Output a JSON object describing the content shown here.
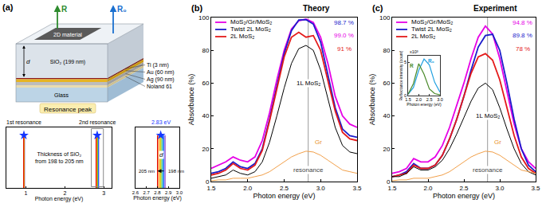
{
  "diagram": {
    "panel_label": "(a)",
    "material": "2D material",
    "R": "R",
    "R0": "R₀",
    "d": "d",
    "layers": [
      "SiO₂ (199 nm)",
      "Ti (3 nm)",
      "Au (60 nm)",
      "Ag (90 nm)",
      "Noland 61",
      "Glass"
    ],
    "resonance_title": "Resonance peak"
  },
  "chart_data": [
    {
      "type": "line",
      "x_title": "Photon energy (eV)",
      "xlim": [
        0.5,
        3.2
      ],
      "xticks": [
        1,
        2,
        3
      ],
      "ylim": [
        0,
        1.15
      ],
      "tick_labels": "x",
      "grid": false,
      "line_height": 1,
      "colors": [
        "#7b2fbe",
        "#2040ff",
        "#00a0ff",
        "#20b040",
        "#c8d000",
        "#ffb000",
        "#ff6a00",
        "#e00000"
      ],
      "first_resonance_eV": [
        0.965,
        0.962,
        0.959,
        0.956,
        0.953,
        0.95,
        0.947,
        0.944
      ],
      "second_resonance_eV": [
        2.87,
        2.86,
        2.85,
        2.84,
        2.83,
        2.82,
        2.81,
        2.8
      ],
      "marker": "star",
      "peaks": [
        {
          "label": "1st resonance",
          "x": 0.95,
          "y": 1
        },
        {
          "label": "2nd resonance",
          "x": 2.83,
          "y": 1
        }
      ],
      "annotation": "Thickness of SiO₂ from 198 to 205 nm"
    },
    {
      "type": "line",
      "x_title": "Photon energy (eV)",
      "xlim": [
        2.6,
        3.0
      ],
      "xticks": [
        2.6,
        2.7,
        2.8,
        2.9,
        {
          "value": 3,
          "label": "3.0"
        }
      ],
      "ylim": [
        0,
        1.15
      ],
      "tick_labels": "x",
      "grid": false,
      "line_height": 1,
      "colors": [
        "#7b2fbe",
        "#2040ff",
        "#00a0ff",
        "#20b040",
        "#c8d000",
        "#ffb000",
        "#ff6a00",
        "#e00000"
      ],
      "second_resonance_eV": [
        2.87,
        2.86,
        2.85,
        2.84,
        2.83,
        2.82,
        2.81,
        2.8
      ],
      "marker": "star",
      "peaks": [
        {
          "label": "2.83 eV",
          "x": 2.83,
          "y": 1
        }
      ],
      "from_label": "198 nm",
      "to_label": "205 nm",
      "d_label": "d"
    },
    {
      "type": "line",
      "panel_label": "(b)",
      "title": "Theory",
      "x_title": "Photon energy (eV)",
      "y_title": "Absorbance (%)",
      "xlim": [
        1.5,
        3.5
      ],
      "xticks": [
        1.5,
        {
          "value": 2,
          "label": "2.0"
        },
        2.5,
        {
          "value": 3,
          "label": "3.0"
        },
        3.5
      ],
      "ylim": [
        0,
        100
      ],
      "yticks": [
        0,
        20,
        40,
        60,
        80,
        100
      ],
      "grid": false,
      "legend": "upper left",
      "resonance_x": 2.83,
      "x": [
        1.5,
        1.6,
        1.7,
        1.8,
        1.9,
        2.0,
        2.1,
        2.2,
        2.3,
        2.4,
        2.5,
        2.6,
        2.7,
        2.8,
        2.9,
        3.0,
        3.1,
        3.2,
        3.3,
        3.4,
        3.5
      ],
      "series": [
        {
          "name": "MoS₂/Gr/MoS₂",
          "color": "#e600e6",
          "values": [
            8,
            10,
            12,
            15,
            13,
            12,
            15,
            25,
            42,
            62,
            80,
            93,
            98,
            99,
            97,
            88,
            72,
            52,
            40,
            35,
            33
          ]
        },
        {
          "name": "Twist 2L MoS₂",
          "color": "#1c1ccc",
          "values": [
            5,
            6,
            8,
            12,
            9,
            8,
            11,
            20,
            38,
            58,
            78,
            92,
            98.5,
            98.7,
            96,
            85,
            65,
            45,
            32,
            28,
            27
          ]
        },
        {
          "name": "2L MoS₂",
          "color": "#e41a1a",
          "values": [
            4,
            5,
            7,
            11,
            8,
            7,
            10,
            19,
            37,
            57,
            76,
            88,
            91,
            88,
            89,
            80,
            62,
            43,
            30,
            26,
            25
          ]
        },
        {
          "color": "#000000",
          "values": [
            2,
            3,
            4,
            7,
            5,
            4,
            6,
            12,
            24,
            40,
            57,
            72,
            81,
            83,
            80,
            68,
            50,
            33,
            22,
            18,
            17
          ]
        },
        {
          "color": "#f2a04a",
          "values": [
            0.5,
            1,
            1,
            2,
            2,
            2,
            3,
            4,
            6,
            9,
            12,
            15,
            17,
            18.5,
            18,
            16,
            13,
            10,
            7,
            6,
            5
          ]
        }
      ],
      "annotations": [
        {
          "text": "1L MoS₂",
          "color": "#000000"
        },
        {
          "text": "Gr",
          "color": "#e8902a"
        },
        {
          "text": "resonance",
          "color": "#444444"
        },
        {
          "text": "98.7 %",
          "color": "#1c1ccc"
        },
        {
          "text": "99.0 %",
          "color": "#e600e6"
        },
        {
          "text": "91 %",
          "color": "#e41a1a"
        }
      ]
    },
    {
      "type": "line",
      "panel_label": "(c)",
      "title": "Experiment",
      "x_title": "Photon energy (eV)",
      "y_title": "Absorbance (%)",
      "xlim": [
        1.5,
        3.5
      ],
      "xticks": [
        1.5,
        {
          "value": 2,
          "label": "2.0"
        },
        2.5,
        {
          "value": 3,
          "label": "3.0"
        },
        3.5
      ],
      "ylim": [
        0,
        100
      ],
      "yticks": [
        0,
        20,
        40,
        60,
        80,
        100
      ],
      "grid": false,
      "legend": "upper left",
      "resonance_x": 2.83,
      "x": [
        1.5,
        1.6,
        1.7,
        1.8,
        1.9,
        2.0,
        2.1,
        2.2,
        2.3,
        2.4,
        2.5,
        2.6,
        2.7,
        2.8,
        2.9,
        3.0,
        3.1,
        3.2,
        3.3,
        3.4,
        3.5
      ],
      "series": [
        {
          "name": "MoS₂/Gr/MoS₂",
          "color": "#e600e6",
          "values": [
            5,
            6,
            8,
            14,
            12,
            12,
            15,
            22,
            33,
            46,
            60,
            75,
            88,
            94.8,
            90,
            75,
            55,
            35,
            20,
            12,
            8
          ]
        },
        {
          "name": "Twist 2L MoS₂",
          "color": "#1c1ccc",
          "values": [
            3,
            4,
            6,
            11,
            8,
            8,
            10,
            16,
            26,
            38,
            52,
            68,
            82,
            89,
            89.8,
            80,
            60,
            38,
            20,
            10,
            6
          ]
        },
        {
          "name": "2L MoS₂",
          "color": "#e41a1a",
          "values": [
            3,
            4,
            5,
            10,
            8,
            8,
            10,
            16,
            26,
            38,
            52,
            66,
            76,
            78,
            74,
            62,
            45,
            28,
            15,
            8,
            5
          ]
        },
        {
          "color": "#000000",
          "values": [
            3,
            3,
            5,
            9,
            7,
            7,
            9,
            13,
            20,
            29,
            39,
            49,
            57,
            60,
            56,
            45,
            32,
            20,
            11,
            6,
            4
          ]
        },
        {
          "color": "#f2a04a",
          "values": [
            0.5,
            1,
            1,
            2,
            2,
            2,
            3,
            4,
            6,
            9,
            12,
            15,
            17,
            18.5,
            18,
            16,
            13,
            10,
            7,
            6,
            5
          ]
        }
      ],
      "annotations": [
        {
          "text": "1L MoS₂",
          "color": "#000000"
        },
        {
          "text": "Gr",
          "color": "#e8902a"
        },
        {
          "text": "resonance",
          "color": "#444444"
        },
        {
          "text": "94.8 %",
          "color": "#e600e6"
        },
        {
          "text": "89.8 %",
          "color": "#1c1ccc"
        },
        {
          "text": "78 %",
          "color": "#e41a1a"
        }
      ],
      "inset": {
        "type": "line",
        "x_title": "Photon energy (eV)",
        "y_title": "Reflectance intensity (count)",
        "multiplier": "x10³",
        "xlim": [
          1.5,
          3.0
        ],
        "xticks": [
          1.5,
          {
            "value": 2,
            "label": "2.0"
          },
          2.5,
          {
            "value": 3,
            "label": "3.0"
          }
        ],
        "ylim": [
          0,
          6
        ],
        "yticks": [
          0,
          5
        ],
        "grid": false,
        "x": [
          1.5,
          1.75,
          2.0,
          2.25,
          2.5,
          2.75,
          3.0
        ],
        "series": [
          {
            "name": "R₀",
            "color": "#20a0e0",
            "values": [
              0.2,
              1.2,
              3.8,
              5.5,
              4.6,
              2.0,
              0.5
            ]
          },
          {
            "name": "R",
            "color": "#4a8a2a",
            "values": [
              0.2,
              1.8,
              4.8,
              3.2,
              1.0,
              0.3,
              0.1
            ]
          }
        ]
      }
    }
  ]
}
